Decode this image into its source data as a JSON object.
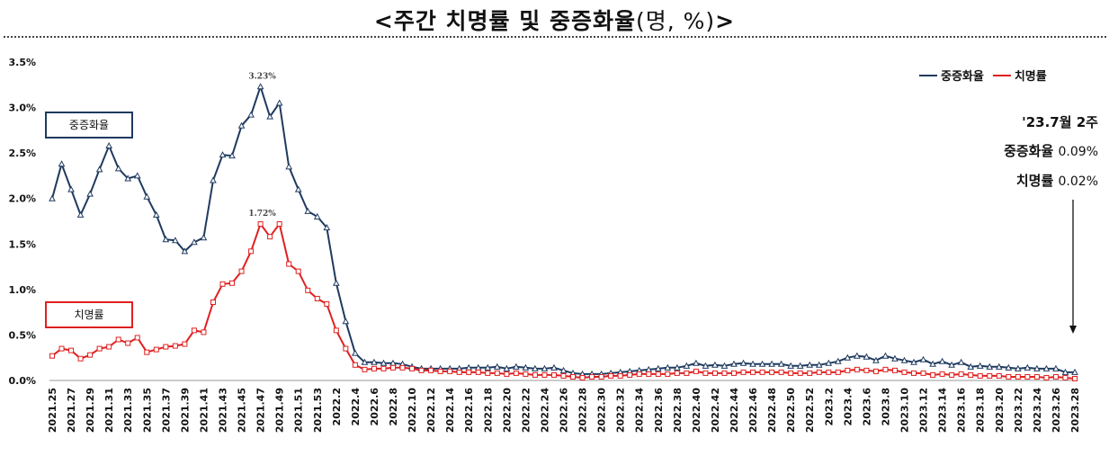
{
  "title": {
    "main": "<주간 치명률 및 중증화율",
    "unit": "(명, %)",
    "close": ">"
  },
  "labels": {
    "severe_box": "중증화율",
    "fatal_box": "치명률"
  },
  "legend": {
    "severe": "중증화율",
    "fatal": "치명률"
  },
  "annotation": {
    "week": "'23.7월 2주",
    "severe_label": "중증화율",
    "severe_value": "0.09%",
    "fatal_label": "치명률",
    "fatal_value": "0.02%"
  },
  "colors": {
    "severe": "#1f3a5f",
    "fatal": "#e02020",
    "grid": "#cccccc"
  },
  "chart_data": {
    "type": "line",
    "title": "<주간 치명률 및 중증화율(명, %)>",
    "xlabel": "",
    "ylabel": "",
    "ylim": [
      0,
      3.5
    ],
    "yticks": [
      "0.0%",
      "0.5%",
      "1.0%",
      "1.5%",
      "2.0%",
      "2.5%",
      "3.0%",
      "3.5%"
    ],
    "grid": false,
    "legend_position": "top-right",
    "x": [
      "2021.25",
      "2021.26",
      "2021.27",
      "2021.28",
      "2021.29",
      "2021.30",
      "2021.31",
      "2021.32",
      "2021.33",
      "2021.34",
      "2021.35",
      "2021.36",
      "2021.37",
      "2021.38",
      "2021.39",
      "2021.40",
      "2021.41",
      "2021.42",
      "2021.43",
      "2021.44",
      "2021.45",
      "2021.46",
      "2021.47",
      "2021.48",
      "2021.49",
      "2021.50",
      "2021.51",
      "2021.52",
      "2021.53",
      "2022.1",
      "2022.2",
      "2022.3",
      "2022.4",
      "2022.5",
      "2022.6",
      "2022.7",
      "2022.8",
      "2022.9",
      "2022.10",
      "2022.11",
      "2022.12",
      "2022.13",
      "2022.14",
      "2022.15",
      "2022.16",
      "2022.17",
      "2022.18",
      "2022.19",
      "2022.20",
      "2022.21",
      "2022.22",
      "2022.23",
      "2022.24",
      "2022.25",
      "2022.26",
      "2022.27",
      "2022.28",
      "2022.29",
      "2022.30",
      "2022.31",
      "2022.32",
      "2022.33",
      "2022.34",
      "2022.35",
      "2022.36",
      "2022.37",
      "2022.38",
      "2022.39",
      "2022.40",
      "2022.41",
      "2022.42",
      "2022.43",
      "2022.44",
      "2022.45",
      "2022.46",
      "2022.47",
      "2022.48",
      "2022.49",
      "2022.50",
      "2022.51",
      "2022.52",
      "2023.1",
      "2023.2",
      "2023.3",
      "2023.4",
      "2023.5",
      "2023.6",
      "2023.7",
      "2023.8",
      "2023.9",
      "2023.10",
      "2023.11",
      "2023.12",
      "2023.13",
      "2023.14",
      "2023.15",
      "2023.16",
      "2023.17",
      "2023.18",
      "2023.19",
      "2023.20",
      "2023.21",
      "2023.22",
      "2023.23",
      "2023.24",
      "2023.25",
      "2023.26",
      "2023.27",
      "2023.28"
    ],
    "tick_labels": [
      "2021.25",
      "2021.27",
      "2021.29",
      "2021.31",
      "2021.33",
      "2021.35",
      "2021.37",
      "2021.39",
      "2021.41",
      "2021.43",
      "2021.45",
      "2021.47",
      "2021.49",
      "2021.51",
      "2021.53",
      "2022.2",
      "2022.4",
      "2022.6",
      "2022.8",
      "2022.10",
      "2022.12",
      "2022.14",
      "2022.16",
      "2022.18",
      "2022.20",
      "2022.22",
      "2022.24",
      "2022.26",
      "2022.28",
      "2022.30",
      "2022.32",
      "2022.34",
      "2022.36",
      "2022.38",
      "2022.40",
      "2022.42",
      "2022.44",
      "2022.46",
      "2022.48",
      "2022.50",
      "2022.52",
      "2023.2",
      "2023.4",
      "2023.6",
      "2023.8",
      "2023.10",
      "2023.12",
      "2023.14",
      "2023.16",
      "2023.18",
      "2023.20",
      "2023.22",
      "2023.24",
      "2023.26",
      "2023.28"
    ],
    "series": [
      {
        "name": "중증화율",
        "values": [
          2.0,
          2.38,
          2.1,
          1.82,
          2.05,
          2.32,
          2.58,
          2.33,
          2.22,
          2.25,
          2.02,
          1.82,
          1.55,
          1.54,
          1.42,
          1.52,
          1.57,
          2.2,
          2.48,
          2.47,
          2.8,
          2.92,
          3.23,
          2.9,
          3.05,
          2.35,
          2.1,
          1.86,
          1.8,
          1.68,
          1.07,
          0.65,
          0.3,
          0.2,
          0.2,
          0.19,
          0.19,
          0.18,
          0.15,
          0.13,
          0.13,
          0.13,
          0.13,
          0.13,
          0.14,
          0.14,
          0.14,
          0.15,
          0.13,
          0.15,
          0.14,
          0.13,
          0.13,
          0.14,
          0.11,
          0.08,
          0.07,
          0.07,
          0.07,
          0.08,
          0.09,
          0.1,
          0.11,
          0.12,
          0.13,
          0.14,
          0.14,
          0.16,
          0.19,
          0.16,
          0.17,
          0.16,
          0.18,
          0.19,
          0.18,
          0.18,
          0.18,
          0.18,
          0.16,
          0.16,
          0.17,
          0.17,
          0.19,
          0.21,
          0.25,
          0.27,
          0.26,
          0.22,
          0.27,
          0.24,
          0.22,
          0.2,
          0.23,
          0.18,
          0.21,
          0.17,
          0.2,
          0.15,
          0.16,
          0.15,
          0.15,
          0.14,
          0.13,
          0.14,
          0.13,
          0.13,
          0.13,
          0.09,
          0.09
        ],
        "annotation": "3.23%"
      },
      {
        "name": "치명률",
        "values": [
          0.27,
          0.35,
          0.33,
          0.24,
          0.28,
          0.35,
          0.37,
          0.45,
          0.41,
          0.47,
          0.31,
          0.34,
          0.37,
          0.38,
          0.4,
          0.55,
          0.53,
          0.86,
          1.06,
          1.07,
          1.2,
          1.42,
          1.72,
          1.58,
          1.72,
          1.28,
          1.2,
          0.99,
          0.9,
          0.84,
          0.55,
          0.35,
          0.17,
          0.12,
          0.13,
          0.13,
          0.14,
          0.14,
          0.13,
          0.11,
          0.11,
          0.1,
          0.1,
          0.09,
          0.09,
          0.09,
          0.08,
          0.08,
          0.07,
          0.08,
          0.07,
          0.06,
          0.06,
          0.06,
          0.05,
          0.04,
          0.03,
          0.04,
          0.04,
          0.05,
          0.05,
          0.06,
          0.07,
          0.07,
          0.07,
          0.07,
          0.08,
          0.08,
          0.1,
          0.08,
          0.08,
          0.08,
          0.08,
          0.09,
          0.09,
          0.09,
          0.09,
          0.09,
          0.08,
          0.08,
          0.08,
          0.09,
          0.09,
          0.09,
          0.11,
          0.12,
          0.11,
          0.1,
          0.12,
          0.11,
          0.09,
          0.08,
          0.08,
          0.06,
          0.07,
          0.06,
          0.07,
          0.06,
          0.05,
          0.05,
          0.05,
          0.04,
          0.04,
          0.04,
          0.04,
          0.03,
          0.04,
          0.03,
          0.02
        ],
        "annotation": "1.72%"
      }
    ]
  }
}
